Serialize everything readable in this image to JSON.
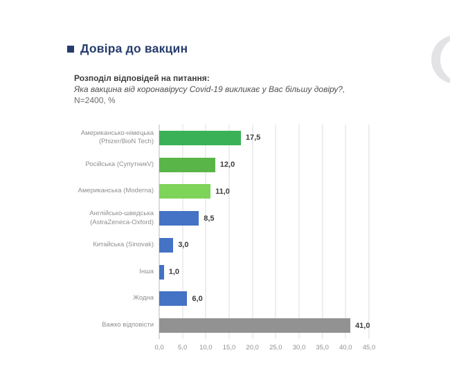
{
  "page": {
    "background": "#ffffff"
  },
  "header": {
    "title": "Довіра до вакцин",
    "bullet_color": "#263c6b"
  },
  "subtitle": {
    "lead": "Розподіл відповідей на питання:",
    "question_italic": "Яка вакцина від коронавірусу Covid-19 викликає у Вас більшу довіру?,",
    "sample_note": " N=2400, %"
  },
  "decoration": {
    "crescent_color": "#e3e3e6"
  },
  "chart_data": {
    "type": "bar",
    "orientation": "horizontal",
    "title": "Довіра до вакцин",
    "categories": [
      "Американсько-німецька (Phizer/BioN Tech)",
      "Російська (СупутникV)",
      "Американська (Moderna)",
      "Англійсько-шведська (AstraZeneca-Oxford)",
      "Китайська (Sinovak)",
      "Інша",
      "Жодна",
      "Важко відповісти"
    ],
    "category_lines": [
      [
        "Американсько-німецька",
        "(Phizer/BioN Tech)"
      ],
      [
        "Російська (СупутникV)"
      ],
      [
        "Американська (Moderna)"
      ],
      [
        "Англійсько-шведська",
        "(AstraZeneca-Oxford)"
      ],
      [
        "Китайська (Sinovak)"
      ],
      [
        "Інша"
      ],
      [
        "Жодна"
      ],
      [
        "Важко відповісти"
      ]
    ],
    "values": [
      17.5,
      12.0,
      11.0,
      8.5,
      3.0,
      1.0,
      6.0,
      41.0
    ],
    "value_labels": [
      "17,5",
      "12,0",
      "11,0",
      "8,5",
      "3,0",
      "1,0",
      "6,0",
      "41,0"
    ],
    "bar_colors": [
      "#3bb157",
      "#5ab548",
      "#7ed359",
      "#4472c4",
      "#4472c4",
      "#4472c4",
      "#4472c4",
      "#929292"
    ],
    "xlim": [
      0,
      45
    ],
    "x_ticks": [
      0,
      5,
      10,
      15,
      20,
      25,
      30,
      35,
      40,
      45
    ],
    "x_tick_labels": [
      "0,0",
      "5,0",
      "10,0",
      "15,0",
      "20,0",
      "25,0",
      "30,0",
      "35,0",
      "40,0",
      "45,0"
    ],
    "grid": "vertical",
    "legend": "none",
    "colors": {
      "gridline": "#dcdcde",
      "axis_line": "#b9b9be",
      "category_label": "#8f8f8f",
      "value_label": "#3d3d3d",
      "tick_label": "#8e8e8e"
    }
  }
}
